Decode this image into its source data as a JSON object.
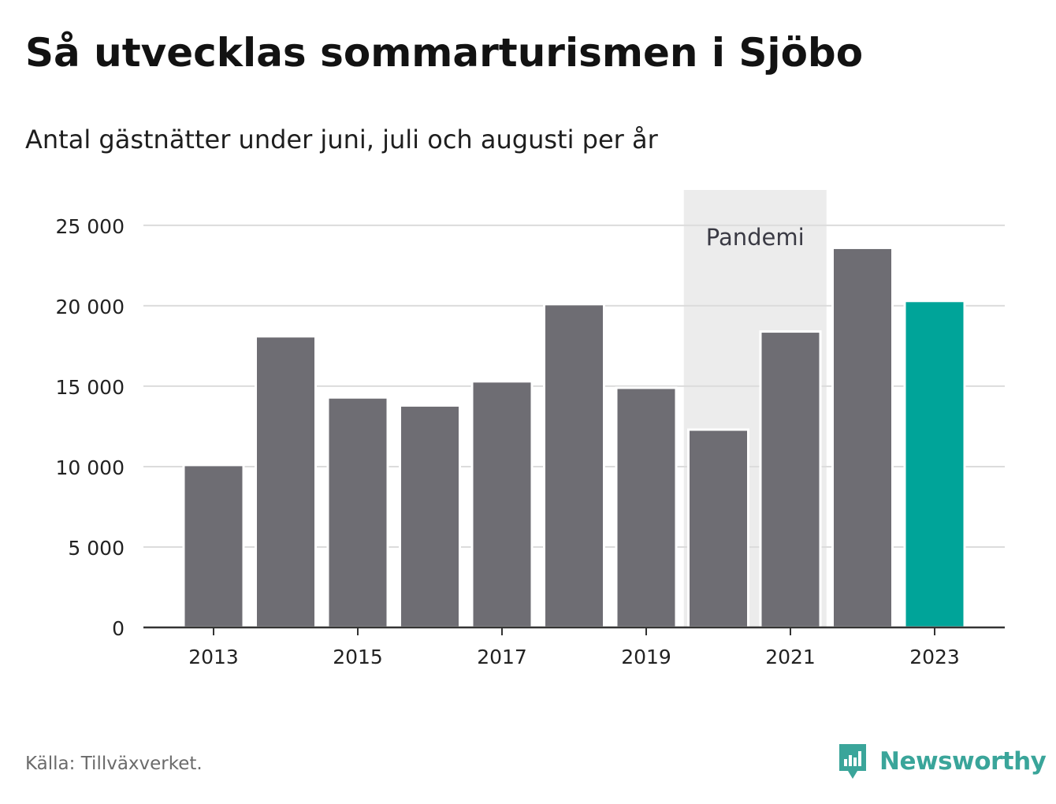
{
  "header": {
    "title": "Så utvecklas sommarturismen i Sjöbo",
    "subtitle": "Antal gästnätter under juni, juli och augusti per år"
  },
  "footer": {
    "source": "Källa: Tillväxverket.",
    "brand": "Newsworthy",
    "brand_icon": "newsworthy-logo-icon"
  },
  "colors": {
    "bar": "#6e6d73",
    "highlight": "#00a499",
    "band": "#ececec",
    "grid": "#dcdcdc",
    "axis": "#333333",
    "brand": "#3aa59a"
  },
  "chart_data": {
    "type": "bar",
    "categories": [
      "2013",
      "2014",
      "2015",
      "2016",
      "2017",
      "2018",
      "2019",
      "2020",
      "2021",
      "2022",
      "2023"
    ],
    "values": [
      10100,
      18100,
      14300,
      13800,
      15300,
      20100,
      14900,
      12300,
      18400,
      23600,
      20300
    ],
    "highlight_category": "2023",
    "xtick_labels": [
      "2013",
      "2015",
      "2017",
      "2019",
      "2021",
      "2023"
    ],
    "yticks": [
      0,
      5000,
      10000,
      15000,
      20000,
      25000
    ],
    "ytick_labels": [
      "0",
      "5 000",
      "10 000",
      "15 000",
      "20 000",
      "25 000"
    ],
    "ylim": [
      0,
      27200
    ],
    "grid": true,
    "annotation": {
      "label": "Pandemi",
      "from": "2020",
      "to": "2021"
    },
    "xlabel": "",
    "ylabel": ""
  }
}
